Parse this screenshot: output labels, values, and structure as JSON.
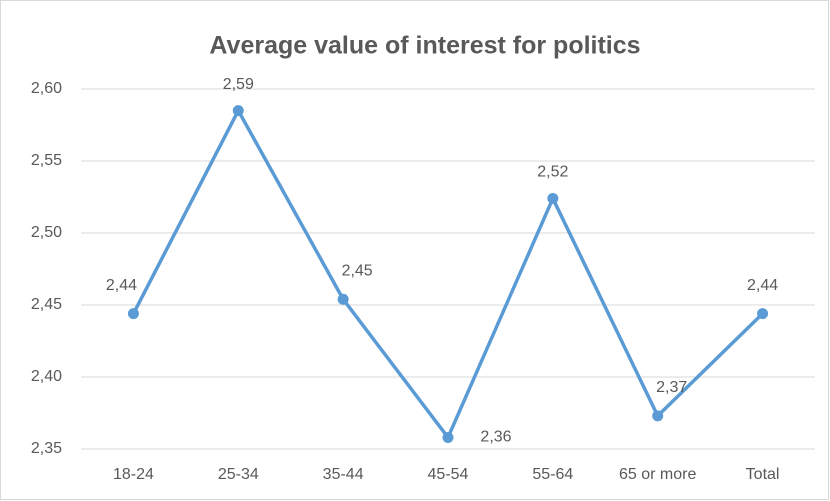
{
  "chart_data": {
    "type": "line",
    "title": "Average value of interest for politics",
    "categories": [
      "18-24",
      "25-34",
      "35-44",
      "45-54",
      "55-64",
      "65 or more",
      "Total"
    ],
    "values": [
      2.444,
      2.585,
      2.454,
      2.358,
      2.524,
      2.373,
      2.444
    ],
    "value_labels": [
      "2,44",
      "2,59",
      "2,45",
      "2,36",
      "2,52",
      "2,37",
      "2,44"
    ],
    "color": "#5b9bd5",
    "ylim": [
      2.35,
      2.6
    ],
    "yticks": [
      {
        "value": 2.35,
        "label": "2,35"
      },
      {
        "value": 2.4,
        "label": "2,40"
      },
      {
        "value": 2.45,
        "label": "2,45"
      },
      {
        "value": 2.5,
        "label": "2,50"
      },
      {
        "value": 2.55,
        "label": "2,55"
      },
      {
        "value": 2.6,
        "label": "2,60"
      }
    ],
    "grid": true
  }
}
